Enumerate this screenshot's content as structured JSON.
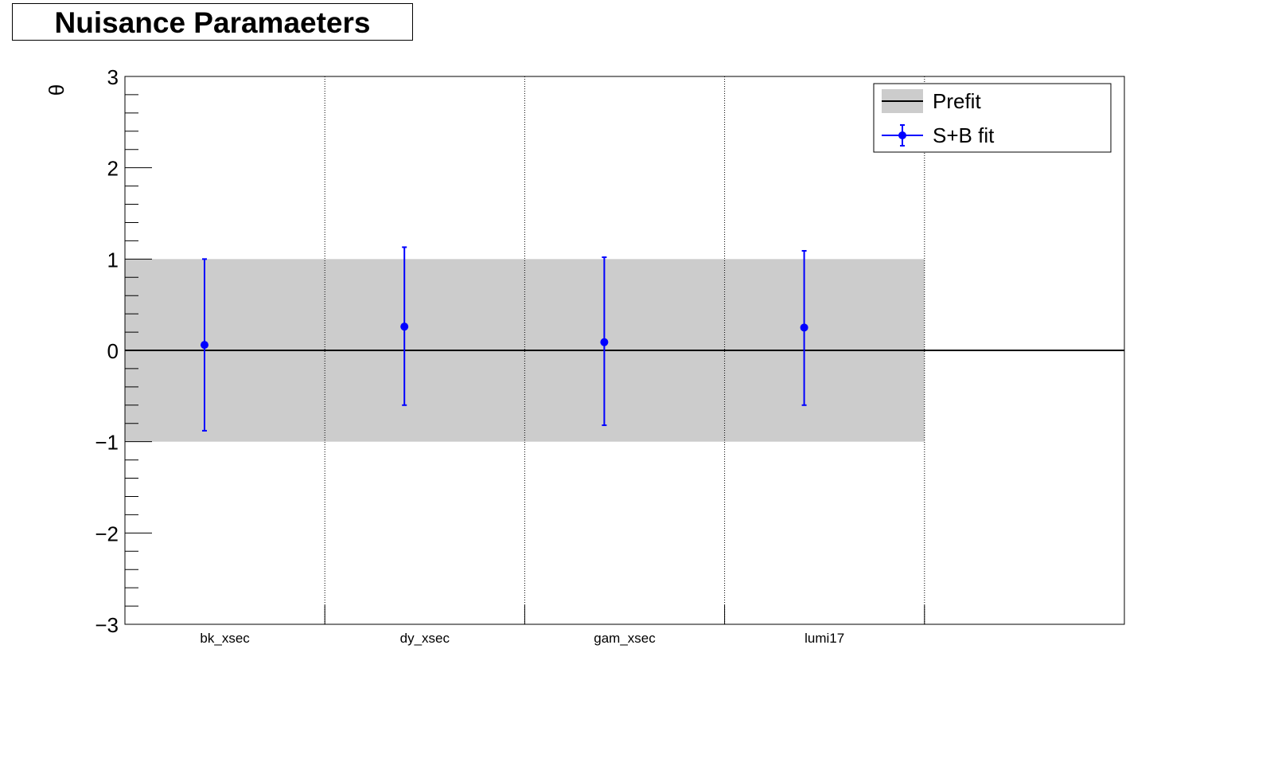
{
  "title": "Nuisance Paramaeters",
  "chart_data": {
    "type": "scatter",
    "title": "Nuisance Paramaeters",
    "xlabel": "",
    "ylabel": "θ",
    "ylim": [
      -3,
      3
    ],
    "yticks": [
      "3",
      "2",
      "1",
      "0",
      "−1",
      "−2",
      "−3"
    ],
    "categories": [
      "bk_xsec",
      "dy_xsec",
      "gam_xsec",
      "lumi17"
    ],
    "x_bins": 5,
    "prefit_band": [
      -1,
      1
    ],
    "series": [
      {
        "name": "S+B fit",
        "color": "#0000ff",
        "values": [
          0.06,
          0.26,
          0.09,
          0.25
        ],
        "err_low": [
          0.94,
          0.86,
          0.91,
          0.85
        ],
        "err_high": [
          0.94,
          0.87,
          0.93,
          0.84
        ]
      }
    ],
    "legend": {
      "position": "top-right",
      "entries": [
        {
          "label": "Prefit",
          "kind": "band-line"
        },
        {
          "label": "S+B fit",
          "kind": "errorbar-marker"
        }
      ]
    },
    "colors": {
      "band": "#cccccc",
      "points": "#0000ff",
      "line": "#000000"
    },
    "grid": "vertical-dotted"
  }
}
